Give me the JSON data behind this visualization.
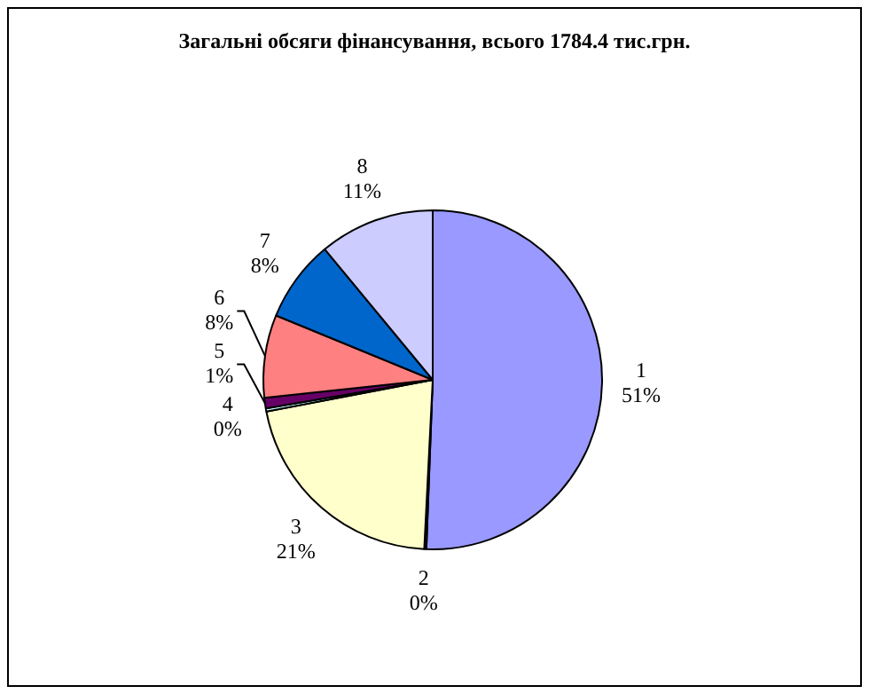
{
  "chart_data": {
    "type": "pie",
    "title": "Загальні обсяги фінансування, всього 1784.4 тис.грн.",
    "categories": [
      "1",
      "2",
      "3",
      "4",
      "5",
      "6",
      "7",
      "8"
    ],
    "values": [
      50.6,
      0.2,
      21.2,
      0.3,
      1.0,
      7.9,
      7.8,
      11.0
    ],
    "value_labels": [
      "51%",
      "0%",
      "21%",
      "0%",
      "1%",
      "8%",
      "8%",
      "11%"
    ],
    "colors": [
      "#9999ff",
      "#993366",
      "#ffffcc",
      "#ccffff",
      "#660066",
      "#ff8080",
      "#0066cc",
      "#ccccff"
    ],
    "legend": false
  }
}
